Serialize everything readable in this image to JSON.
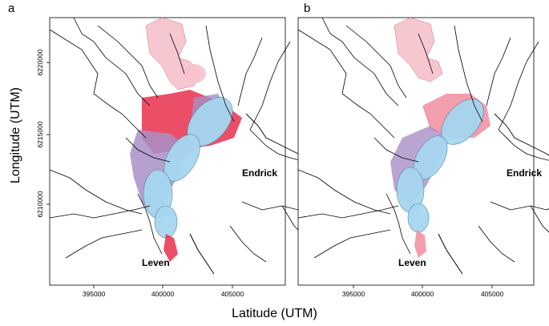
{
  "panels": [
    {
      "letter": "a",
      "places": [
        "Endrick",
        "Leven"
      ]
    },
    {
      "letter": "b",
      "places": [
        "Endrick",
        "Leven"
      ]
    }
  ],
  "axes": {
    "xlabel": "Latitude (UTM)",
    "ylabel": "Longitude (UTM)",
    "xticks": [
      "395000",
      "400000",
      "405000"
    ],
    "yticks": [
      "6210000",
      "6215000",
      "6220000"
    ]
  },
  "colors": {
    "pink": "#f7c2cc",
    "red": "#e8304e",
    "purple": "#a98fc7",
    "blue": "#a6d6f0",
    "river": "#000000"
  }
}
